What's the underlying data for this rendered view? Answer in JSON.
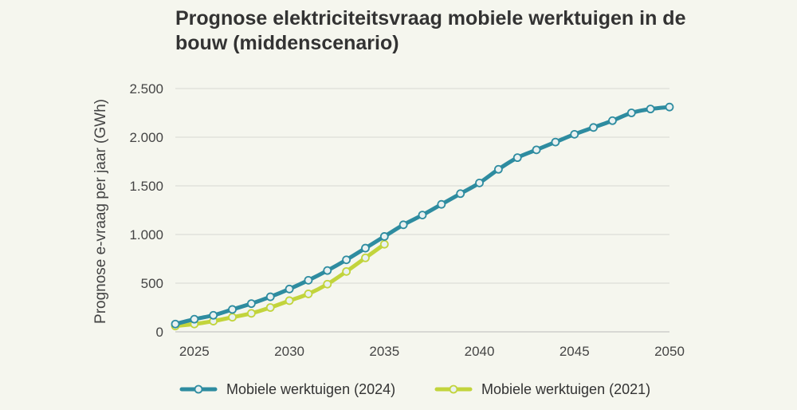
{
  "chart_data": {
    "type": "line",
    "title": "Prognose elektriciteitsvraag mobiele werktuigen in de bouw (middenscenario)",
    "xlabel": "",
    "ylabel": "Prognose e-vraag per jaar (GWh)",
    "xlim": [
      2024,
      2050
    ],
    "ylim": [
      0,
      2500
    ],
    "x_ticks": [
      2025,
      2030,
      2035,
      2040,
      2045,
      2050
    ],
    "y_ticks": [
      {
        "value": 0,
        "label": "0"
      },
      {
        "value": 500,
        "label": "500"
      },
      {
        "value": 1000,
        "label": "1.000"
      },
      {
        "value": 1500,
        "label": "1.500"
      },
      {
        "value": 2000,
        "label": "2.000"
      },
      {
        "value": 2500,
        "label": "2.500"
      }
    ],
    "grid": "horizontal",
    "legend_position": "bottom",
    "series": [
      {
        "name": "Mobiele werktuigen (2024)",
        "color": "#2e8ca0",
        "x": [
          2024,
          2025,
          2026,
          2027,
          2028,
          2029,
          2030,
          2031,
          2032,
          2033,
          2034,
          2035,
          2036,
          2037,
          2038,
          2039,
          2040,
          2041,
          2042,
          2043,
          2044,
          2045,
          2046,
          2047,
          2048,
          2049,
          2050
        ],
        "values": [
          80,
          130,
          170,
          230,
          290,
          360,
          440,
          530,
          630,
          740,
          860,
          980,
          1100,
          1200,
          1310,
          1420,
          1530,
          1670,
          1790,
          1870,
          1950,
          2030,
          2100,
          2170,
          2250,
          2290,
          2310
        ]
      },
      {
        "name": "Mobiele werktuigen (2021)",
        "color": "#c2d43c",
        "x": [
          2024,
          2025,
          2026,
          2027,
          2028,
          2029,
          2030,
          2031,
          2032,
          2033,
          2034,
          2035
        ],
        "values": [
          60,
          80,
          110,
          150,
          190,
          250,
          320,
          390,
          490,
          620,
          760,
          900
        ]
      }
    ]
  }
}
